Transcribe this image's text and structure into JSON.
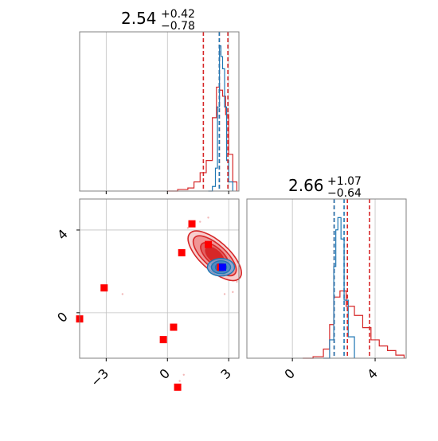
{
  "chart_data": {
    "type": "corner",
    "colors": {
      "red": "#d62728",
      "blue": "#1f77b4",
      "marker_red": "#ff0000",
      "marker_blue": "#0000ff",
      "grid": "#c0c0c0",
      "frame": "#808080"
    },
    "parameters": [
      {
        "title_main": "2.54",
        "title_plus": "+0.42",
        "title_minus": "−0.78",
        "range": [
          -4.3,
          3.5
        ],
        "quantiles": {
          "red": [
            1.76,
            2.54,
            2.96
          ],
          "blue": [
            2.54
          ]
        }
      },
      {
        "title_main": "2.66",
        "title_plus": "+1.07",
        "title_minus": "−0.64",
        "range": [
          -2.2,
          5.5
        ],
        "quantiles": {
          "red": [
            2.02,
            2.66,
            3.73
          ],
          "blue": [
            2.02,
            2.5
          ]
        }
      }
    ],
    "x_ticks": {
      "p1": [
        {
          "value": -3,
          "label": "−3"
        },
        {
          "value": 0,
          "label": "0"
        },
        {
          "value": 3,
          "label": "3"
        }
      ],
      "p2": [
        {
          "value": 0,
          "label": "0"
        },
        {
          "value": 4,
          "label": "4"
        }
      ]
    },
    "y_ticks": {
      "p2": [
        {
          "value": 0,
          "label": "0"
        },
        {
          "value": 4,
          "label": "4"
        }
      ]
    },
    "hist_p1": {
      "red": [
        [
          0.0,
          0
        ],
        [
          0.5,
          1
        ],
        [
          1.0,
          2
        ],
        [
          1.3,
          6
        ],
        [
          1.6,
          12
        ],
        [
          1.9,
          20
        ],
        [
          2.2,
          48
        ],
        [
          2.4,
          68
        ],
        [
          2.55,
          66
        ],
        [
          2.7,
          62
        ],
        [
          2.85,
          50
        ],
        [
          3.0,
          24
        ],
        [
          3.2,
          6
        ],
        [
          3.4,
          0
        ]
      ],
      "blue": [
        [
          2.0,
          0
        ],
        [
          2.2,
          3
        ],
        [
          2.35,
          15
        ],
        [
          2.45,
          55
        ],
        [
          2.55,
          95
        ],
        [
          2.62,
          88
        ],
        [
          2.7,
          80
        ],
        [
          2.8,
          55
        ],
        [
          2.9,
          20
        ],
        [
          3.0,
          6
        ],
        [
          3.2,
          0
        ]
      ]
    },
    "hist_p2": {
      "red": [
        [
          0.5,
          0
        ],
        [
          1.0,
          1
        ],
        [
          1.5,
          6
        ],
        [
          1.8,
          22
        ],
        [
          2.0,
          40
        ],
        [
          2.3,
          44
        ],
        [
          2.6,
          34
        ],
        [
          3.0,
          28
        ],
        [
          3.4,
          20
        ],
        [
          3.8,
          12
        ],
        [
          4.2,
          8
        ],
        [
          4.6,
          5
        ],
        [
          5.0,
          2
        ],
        [
          5.4,
          0
        ]
      ],
      "blue": [
        [
          1.5,
          0
        ],
        [
          1.8,
          12
        ],
        [
          2.0,
          60
        ],
        [
          2.1,
          84
        ],
        [
          2.2,
          92
        ],
        [
          2.35,
          78
        ],
        [
          2.5,
          38
        ],
        [
          2.7,
          14
        ],
        [
          3.0,
          0
        ]
      ]
    },
    "scatter_points": [
      [
        -4.3,
        -0.3
      ],
      [
        -3.1,
        1.2
      ],
      [
        -0.2,
        -1.3
      ],
      [
        0.3,
        -0.7
      ],
      [
        0.5,
        -3.6
      ],
      [
        0.7,
        2.9
      ],
      [
        1.2,
        4.3
      ],
      [
        2.0,
        3.3
      ],
      [
        2.6,
        2.2
      ]
    ],
    "highlight_point": [
      2.7,
      2.2
    ]
  }
}
